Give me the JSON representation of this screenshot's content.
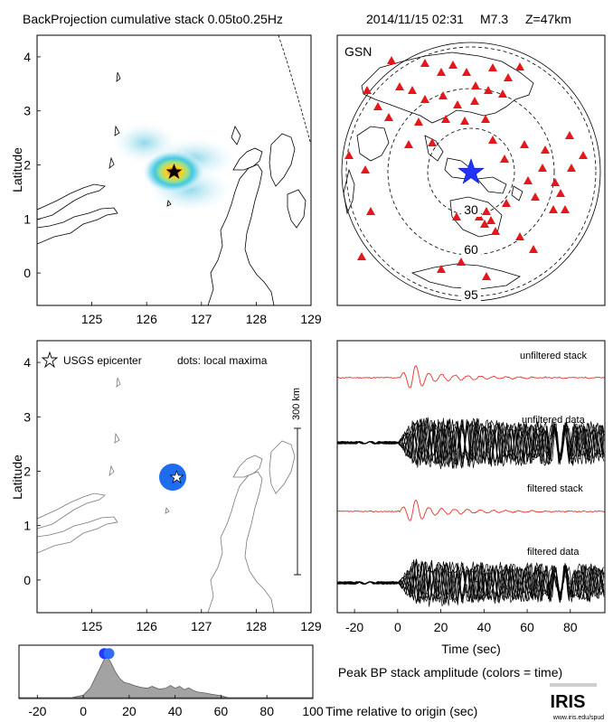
{
  "header": {
    "title": "BackProjection cumulative stack 0.05to0.25Hz",
    "event": "2014/11/15 02:31",
    "magnitude": "M7.3",
    "depth": "Z=47km"
  },
  "map_top": {
    "ylabel": "Latitude",
    "x_ticks": [
      "125",
      "126",
      "127",
      "128",
      "129"
    ],
    "y_ticks": [
      "4",
      "3",
      "2",
      "1",
      "0"
    ],
    "epicenter": {
      "lon": 126.5,
      "lat": 1.9
    }
  },
  "map_bottom": {
    "ylabel": "Latitude",
    "legend_epicenter": "USGS epicenter",
    "legend_dots": "dots: local maxima",
    "scale_label": "300 km",
    "x_ticks": [
      "125",
      "126",
      "127",
      "128",
      "129"
    ],
    "y_ticks": [
      "4",
      "3",
      "2",
      "1",
      "0"
    ],
    "maxima": {
      "lon": 126.4,
      "lat": 1.9
    }
  },
  "station_map": {
    "network": "GSN",
    "ring_labels": [
      "30",
      "60",
      "95"
    ]
  },
  "traces": {
    "labels": [
      "unfiltered stack",
      "unfiltered data",
      "filtered stack",
      "filtered data"
    ],
    "x_ticks": [
      "-20",
      "0",
      "20",
      "40",
      "60",
      "80"
    ],
    "xlabel": "Time (sec)",
    "colors": {
      "stack": "#e8322a",
      "data": "#000000"
    }
  },
  "amplitude": {
    "caption": "Peak BP stack amplitude (colors = time)",
    "xlabel": "Time relative to origin (sec)",
    "x_ticks": [
      "-20",
      "0",
      "20",
      "40",
      "60",
      "80",
      "100"
    ]
  },
  "logo": {
    "text": "IRIS",
    "url": "www.iris.edu/spud"
  },
  "chart_data": [
    {
      "type": "heatmap",
      "title": "BackProjection cumulative stack 0.05to0.25Hz",
      "xlim": [
        124,
        129
      ],
      "ylim": [
        -0.6,
        4.4
      ],
      "ylabel": "Latitude",
      "peak": {
        "lon": 126.5,
        "lat": 1.9
      },
      "epicenter": {
        "lon": 126.5,
        "lat": 1.9
      }
    },
    {
      "type": "scatter",
      "xlim": [
        124,
        129
      ],
      "ylim": [
        -0.6,
        4.4
      ],
      "ylabel": "Latitude",
      "points": [
        {
          "lon": 126.4,
          "lat": 1.9
        }
      ]
    },
    {
      "type": "line",
      "xlabel": "Time (sec)",
      "xlim": [
        -28,
        96
      ],
      "series": [
        {
          "name": "unfiltered stack"
        },
        {
          "name": "unfiltered data"
        },
        {
          "name": "filtered stack"
        },
        {
          "name": "filtered data"
        }
      ]
    },
    {
      "type": "area",
      "xlabel": "Time relative to origin (sec)",
      "xlim": [
        -28,
        100
      ],
      "x": [
        -28,
        -5,
        0,
        3,
        5,
        7,
        9,
        10,
        12,
        14,
        16,
        18,
        20,
        22,
        25,
        28,
        30,
        33,
        36,
        38,
        40,
        42,
        44,
        46,
        48,
        50,
        53,
        56,
        60,
        63,
        100
      ],
      "values": [
        0,
        0,
        0.05,
        0.2,
        0.4,
        0.6,
        0.8,
        0.9,
        0.75,
        0.55,
        0.4,
        0.32,
        0.3,
        0.26,
        0.22,
        0.2,
        0.24,
        0.18,
        0.2,
        0.26,
        0.2,
        0.24,
        0.17,
        0.21,
        0.15,
        0.12,
        0.1,
        0.07,
        0.04,
        0,
        0
      ],
      "peak": {
        "x": 10,
        "y": 0.9
      }
    }
  ]
}
